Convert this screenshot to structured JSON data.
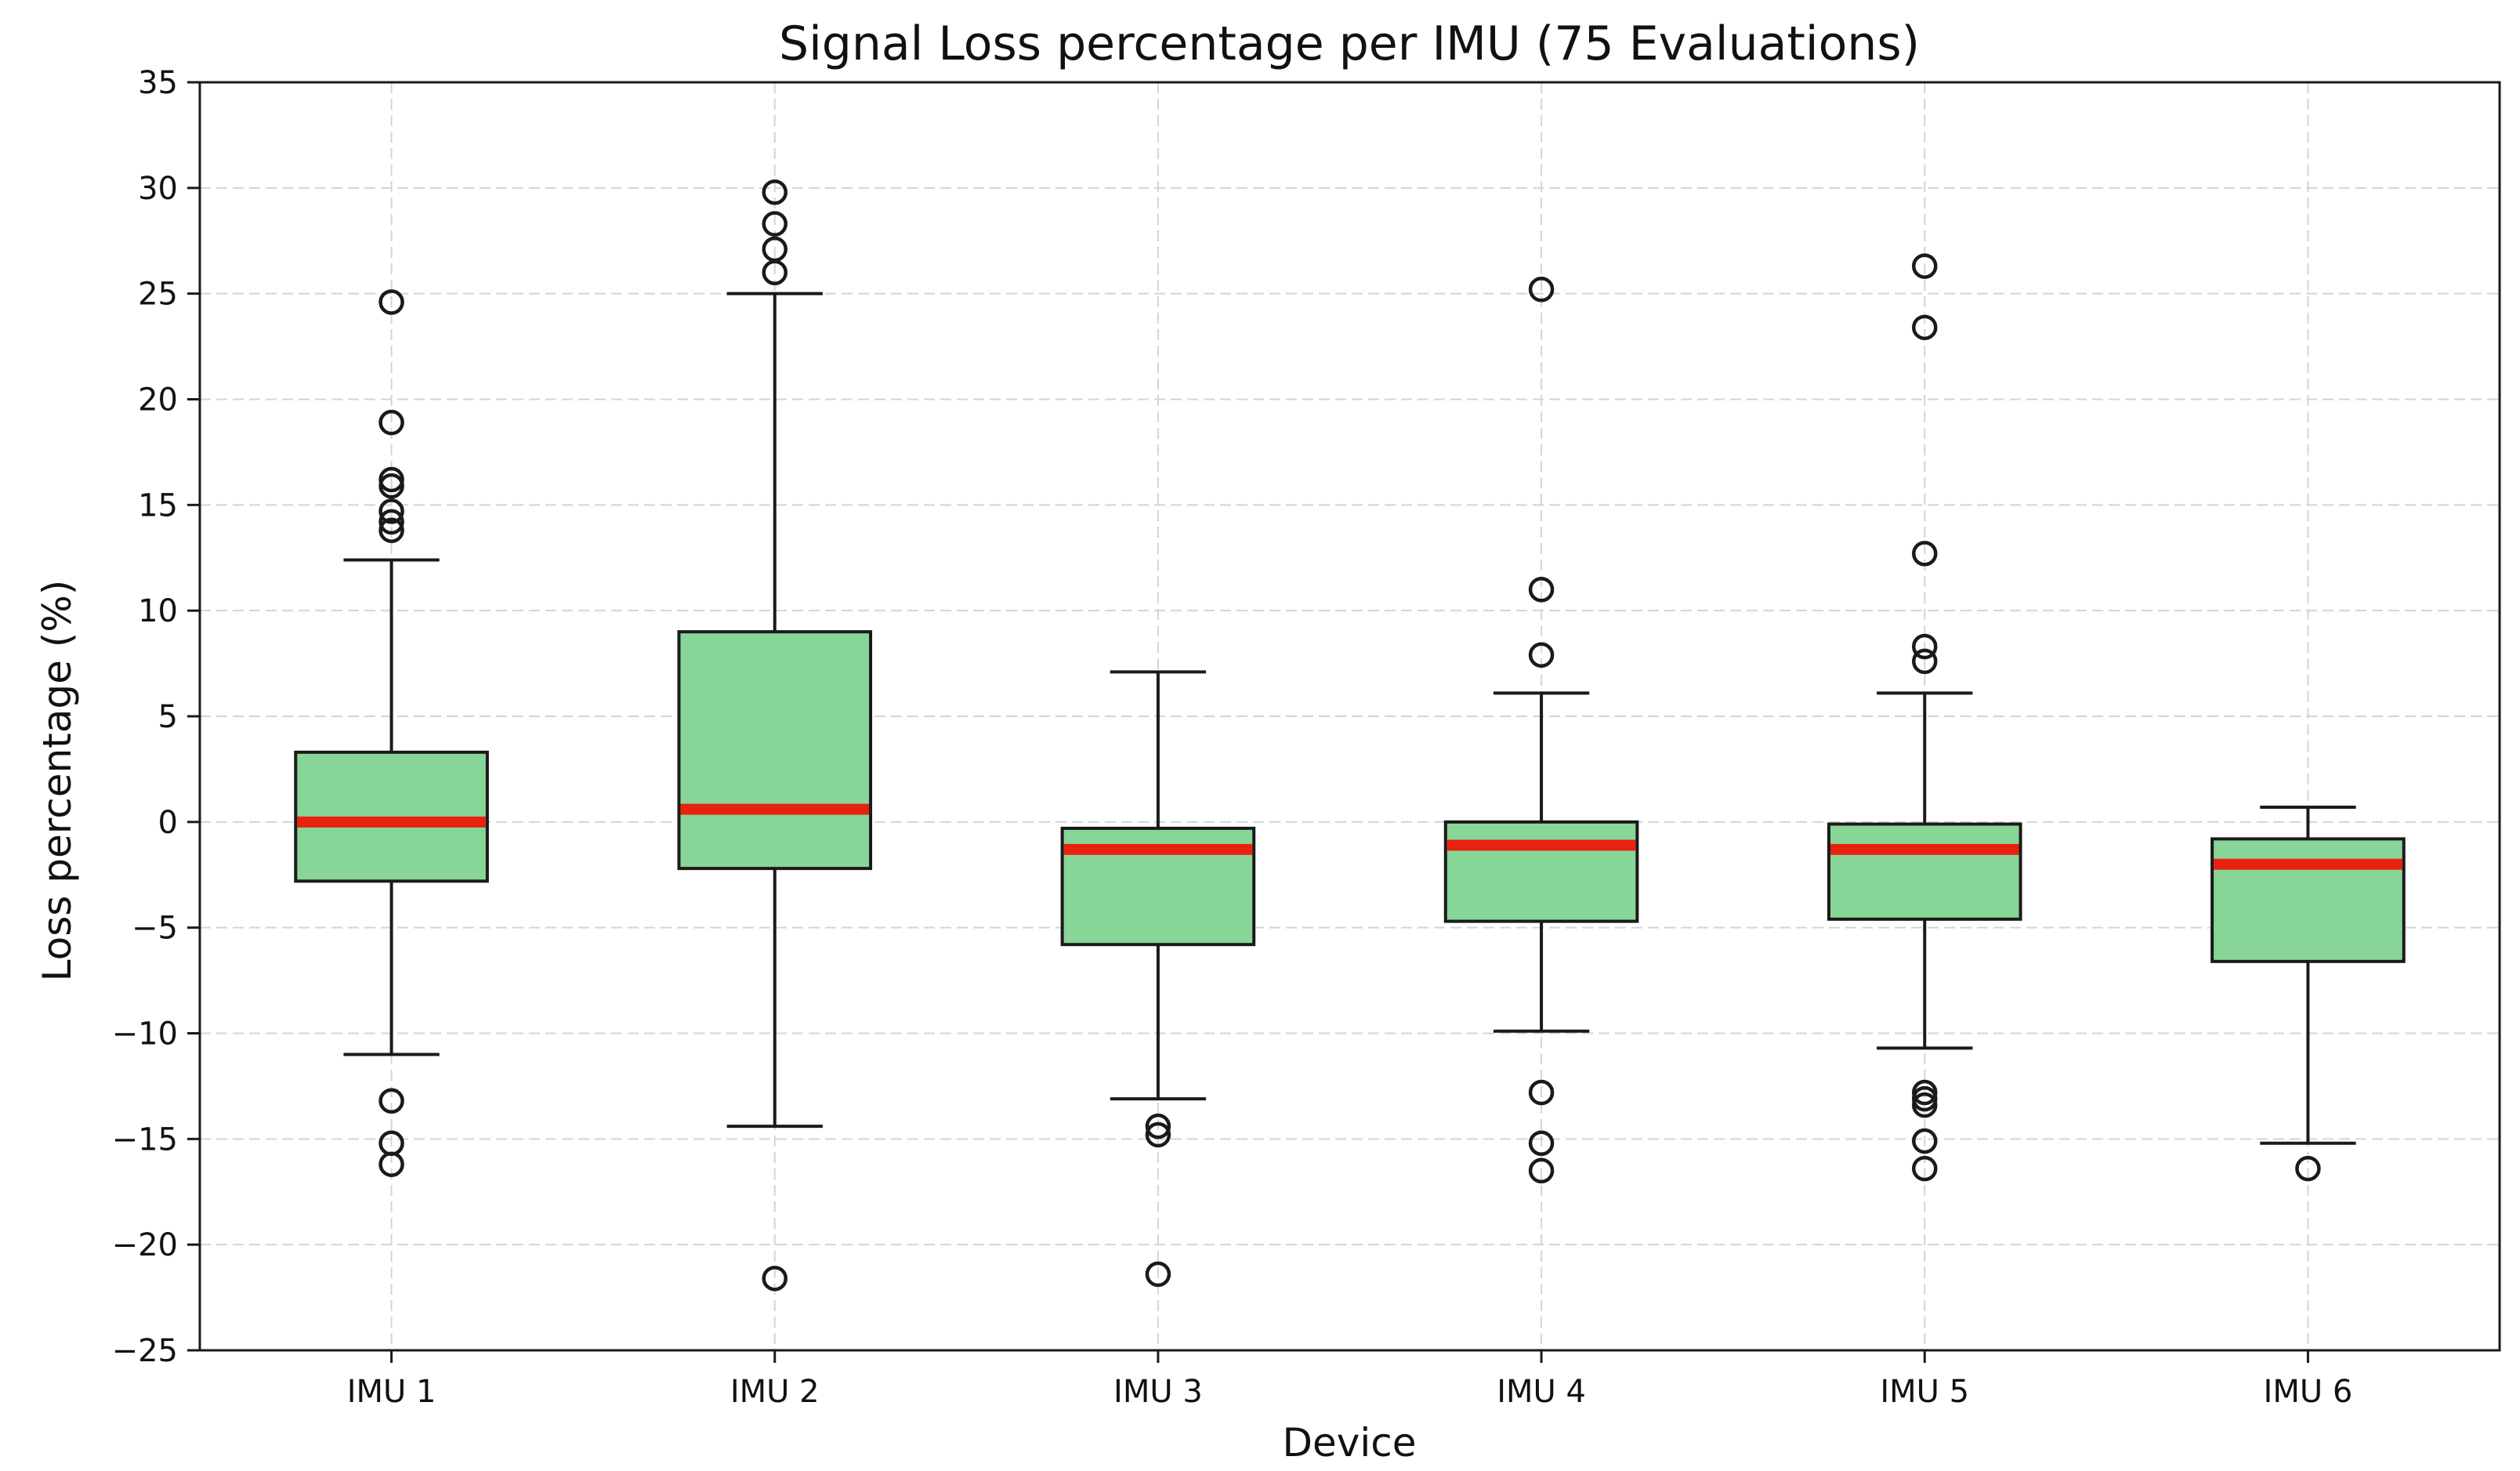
{
  "chart_data": {
    "type": "box",
    "title": "Signal Loss percentage per IMU (75 Evaluations)",
    "xlabel": "Device",
    "ylabel": "Loss percentage (%)",
    "ylim": [
      -25,
      35
    ],
    "yticks": [
      -25,
      -20,
      -15,
      -10,
      -5,
      0,
      5,
      10,
      15,
      20,
      25,
      30,
      35
    ],
    "ytick_labels": [
      "−25",
      "−20",
      "−15",
      "−10",
      "−5",
      "0",
      "5",
      "10",
      "15",
      "20",
      "25",
      "30",
      "35"
    ],
    "categories": [
      "IMU 1",
      "IMU 2",
      "IMU 3",
      "IMU 4",
      "IMU 5",
      "IMU 6"
    ],
    "grid": true,
    "colors": {
      "box_fill": "#88d598",
      "median": "#e8220f",
      "edge": "#1a1a1a"
    },
    "boxes": [
      {
        "category": "IMU 1",
        "whisker_low": -11.0,
        "q1": -2.8,
        "median": 0.0,
        "q3": 3.3,
        "whisker_high": 12.4,
        "outliers": [
          24.6,
          18.9,
          16.2,
          15.9,
          14.7,
          14.2,
          13.8,
          -13.2,
          -15.2,
          -16.2
        ]
      },
      {
        "category": "IMU 2",
        "whisker_low": -14.4,
        "q1": -2.2,
        "median": 0.6,
        "q3": 9.0,
        "whisker_high": 25.0,
        "outliers": [
          29.8,
          28.3,
          27.1,
          26.0,
          -21.6
        ]
      },
      {
        "category": "IMU 3",
        "whisker_low": -13.1,
        "q1": -5.8,
        "median": -1.3,
        "q3": -0.3,
        "whisker_high": 7.1,
        "outliers": [
          -14.4,
          -14.8,
          -21.4
        ]
      },
      {
        "category": "IMU 4",
        "whisker_low": -9.9,
        "q1": -4.7,
        "median": -1.1,
        "q3": 0.0,
        "whisker_high": 6.1,
        "outliers": [
          25.2,
          11.0,
          7.9,
          -12.8,
          -15.2,
          -16.5
        ]
      },
      {
        "category": "IMU 5",
        "whisker_low": -10.7,
        "q1": -4.6,
        "median": -1.3,
        "q3": -0.1,
        "whisker_high": 6.1,
        "outliers": [
          26.3,
          23.4,
          12.7,
          8.3,
          7.6,
          -12.8,
          -13.1,
          -13.4,
          -15.1,
          -16.4
        ]
      },
      {
        "category": "IMU 6",
        "whisker_low": -15.2,
        "q1": -6.6,
        "median": -2.0,
        "q3": -0.8,
        "whisker_high": 0.7,
        "outliers": [
          -16.4
        ]
      }
    ]
  }
}
